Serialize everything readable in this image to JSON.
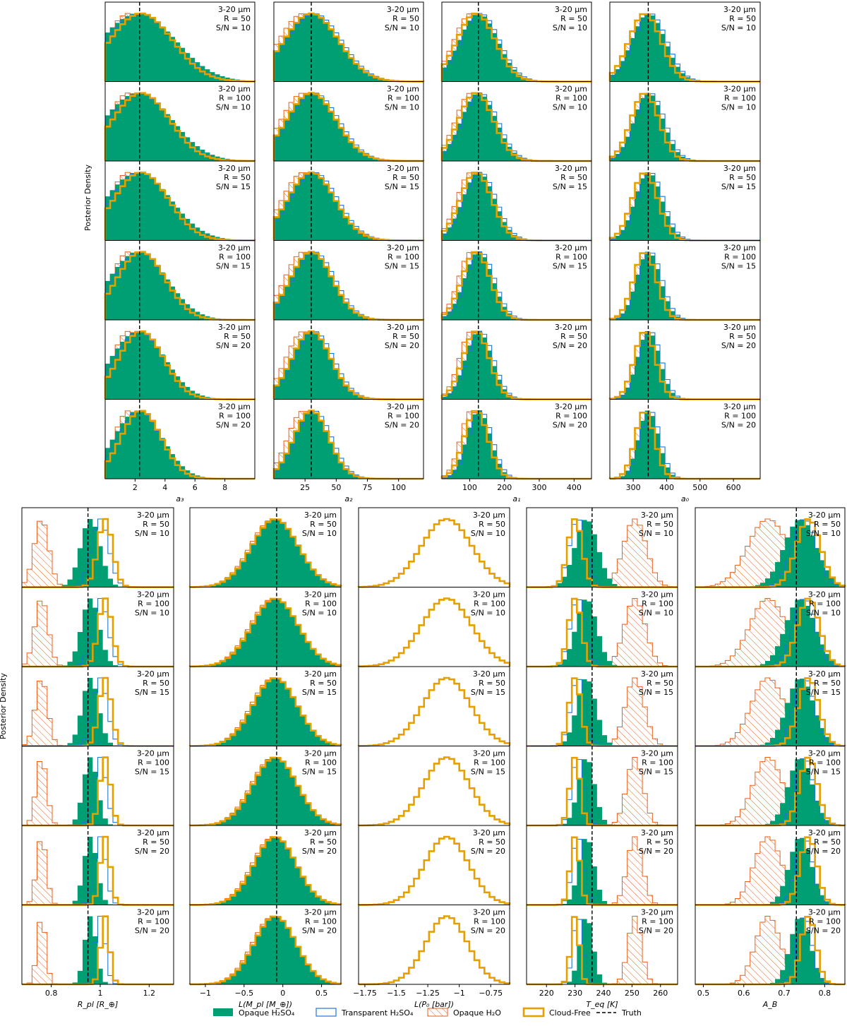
{
  "figure": {
    "ylabel": "Posterior Density",
    "row_labels": [
      {
        "band": "3-20 μm",
        "res": "R = 50",
        "snr": "S/N = 10"
      },
      {
        "band": "3-20 μm",
        "res": "R = 100",
        "snr": "S/N = 10"
      },
      {
        "band": "3-20 μm",
        "res": "R = 50",
        "snr": "S/N = 15"
      },
      {
        "band": "3-20 μm",
        "res": "R = 100",
        "snr": "S/N = 15"
      },
      {
        "band": "3-20 μm",
        "res": "R = 50",
        "snr": "S/N = 20"
      },
      {
        "band": "3-20 μm",
        "res": "R = 100",
        "snr": "S/N = 20"
      }
    ],
    "legend": [
      {
        "label": "Opaque H₂SO₄",
        "style": "filled",
        "color": "#009E73"
      },
      {
        "label": "Transparent H₂SO₄",
        "style": "step",
        "color": "#1f77d4"
      },
      {
        "label": "Opaque H₂O",
        "style": "hatched",
        "color": "#e8601c"
      },
      {
        "label": "Cloud-Free",
        "style": "thick-step",
        "color": "#e69f00"
      },
      {
        "label": "Truth",
        "style": "dashed",
        "color": "#000000"
      }
    ],
    "colors": {
      "opaque_h2so4": "#009E73",
      "transparent_h2so4": "#1f77d4",
      "opaque_h2o": "#e8601c",
      "cloud_free": "#e69f00",
      "truth": "#000000"
    }
  },
  "chart_data": [
    {
      "type": "histogram",
      "xlabel": "a₃",
      "xlim": [
        0,
        10
      ],
      "xticks": [
        2,
        4,
        6,
        8
      ],
      "truth": 2.3,
      "modes": {
        "opaque_h2so4": [
          2.2,
          2.5
        ],
        "transparent_h2so4": [
          2.3,
          2.2
        ],
        "opaque_h2o": [
          1.6,
          1.6
        ],
        "cloud_free": [
          2.4,
          2.1
        ]
      },
      "sharpen": [
        1.0,
        1.1,
        1.15,
        1.3,
        1.4,
        1.55
      ]
    },
    {
      "type": "histogram",
      "xlabel": "a₂",
      "xlim": [
        0,
        120
      ],
      "xticks": [
        25,
        50,
        75,
        100
      ],
      "truth": 30,
      "modes": {
        "opaque_h2so4": [
          30,
          22
        ],
        "transparent_h2so4": [
          32,
          22
        ],
        "opaque_h2o": [
          24,
          20
        ],
        "cloud_free": [
          30,
          22
        ]
      },
      "sharpen": [
        1.0,
        1.1,
        1.15,
        1.3,
        1.4,
        1.55
      ]
    },
    {
      "type": "histogram",
      "xlabel": "a₁",
      "xlim": [
        20,
        450
      ],
      "xticks": [
        100,
        200,
        300,
        400
      ],
      "truth": 125,
      "modes": {
        "opaque_h2so4": [
          125,
          55
        ],
        "transparent_h2so4": [
          130,
          55
        ],
        "opaque_h2o": [
          105,
          50
        ],
        "cloud_free": [
          118,
          55
        ]
      },
      "sharpen": [
        1.0,
        1.1,
        1.2,
        1.35,
        1.45,
        1.6
      ]
    },
    {
      "type": "histogram",
      "xlabel": "a₀",
      "xlim": [
        230,
        680
      ],
      "xticks": [
        300,
        400,
        500,
        600
      ],
      "truth": 345,
      "modes": {
        "opaque_h2so4": [
          345,
          50
        ],
        "transparent_h2so4": [
          350,
          50
        ],
        "opaque_h2o": [
          335,
          48
        ],
        "cloud_free": [
          335,
          48
        ]
      },
      "sharpen": [
        1.0,
        1.15,
        1.25,
        1.4,
        1.5,
        1.65
      ]
    },
    {
      "type": "histogram",
      "xlabel": "R_pl [R_⊕]",
      "xlim": [
        0.68,
        1.3
      ],
      "xticks": [
        0.8,
        1.0,
        1.2
      ],
      "truth": 0.95,
      "modes": {
        "opaque_h2so4": [
          0.96,
          0.04
        ],
        "transparent_h2so4": [
          1.0,
          0.035
        ],
        "opaque_h2o": [
          0.76,
          0.03
        ],
        "cloud_free": [
          1.02,
          0.03
        ]
      },
      "sharpen": [
        1.0,
        1.1,
        1.2,
        1.4,
        1.5,
        1.7
      ]
    },
    {
      "type": "histogram",
      "xlabel": "L(M_pl [M_⊕])",
      "xlim": [
        -1.2,
        0.75
      ],
      "xticks": [
        -1.0,
        -0.5,
        0.0,
        0.5
      ],
      "truth": -0.08,
      "modes": {
        "opaque_h2so4": [
          -0.1,
          0.3
        ],
        "transparent_h2so4": [
          -0.1,
          0.3
        ],
        "opaque_h2o": [
          -0.12,
          0.3
        ],
        "cloud_free": [
          -0.1,
          0.3
        ]
      },
      "sharpen": [
        1.0,
        1.0,
        1.05,
        1.05,
        1.1,
        1.1
      ]
    },
    {
      "type": "histogram",
      "xlabel": "L(P₀ [bar])",
      "xlim": [
        -1.8,
        -0.6
      ],
      "xticks": [
        -1.75,
        -1.5,
        -1.25,
        -1.0,
        -0.75
      ],
      "truth": null,
      "modes": {
        "transparent_h2so4": [
          -1.1,
          0.2
        ],
        "cloud_free": [
          -1.1,
          0.2
        ]
      },
      "sharpen": [
        1.0,
        1.0,
        1.05,
        1.1,
        1.15,
        1.2
      ]
    },
    {
      "type": "histogram",
      "xlabel": "T_eq [K]",
      "xlim": [
        213,
        266
      ],
      "xticks": [
        220,
        230,
        240,
        250,
        260
      ],
      "truth": 236,
      "modes": {
        "opaque_h2so4": [
          234,
          4
        ],
        "transparent_h2so4": [
          231,
          3
        ],
        "opaque_h2o": [
          251,
          4
        ],
        "cloud_free": [
          230,
          2.5
        ]
      },
      "sharpen": [
        1.0,
        1.1,
        1.2,
        1.4,
        1.5,
        1.7
      ]
    },
    {
      "type": "histogram",
      "xlabel": "A_B",
      "xlim": [
        0.48,
        0.85
      ],
      "xticks": [
        0.5,
        0.6,
        0.7,
        0.8
      ],
      "truth": 0.73,
      "modes": {
        "opaque_h2so4": [
          0.74,
          0.04
        ],
        "transparent_h2so4": [
          0.75,
          0.03
        ],
        "opaque_h2o": [
          0.66,
          0.05
        ],
        "cloud_free": [
          0.76,
          0.03
        ]
      },
      "sharpen": [
        1.0,
        1.1,
        1.2,
        1.35,
        1.45,
        1.6
      ]
    }
  ]
}
